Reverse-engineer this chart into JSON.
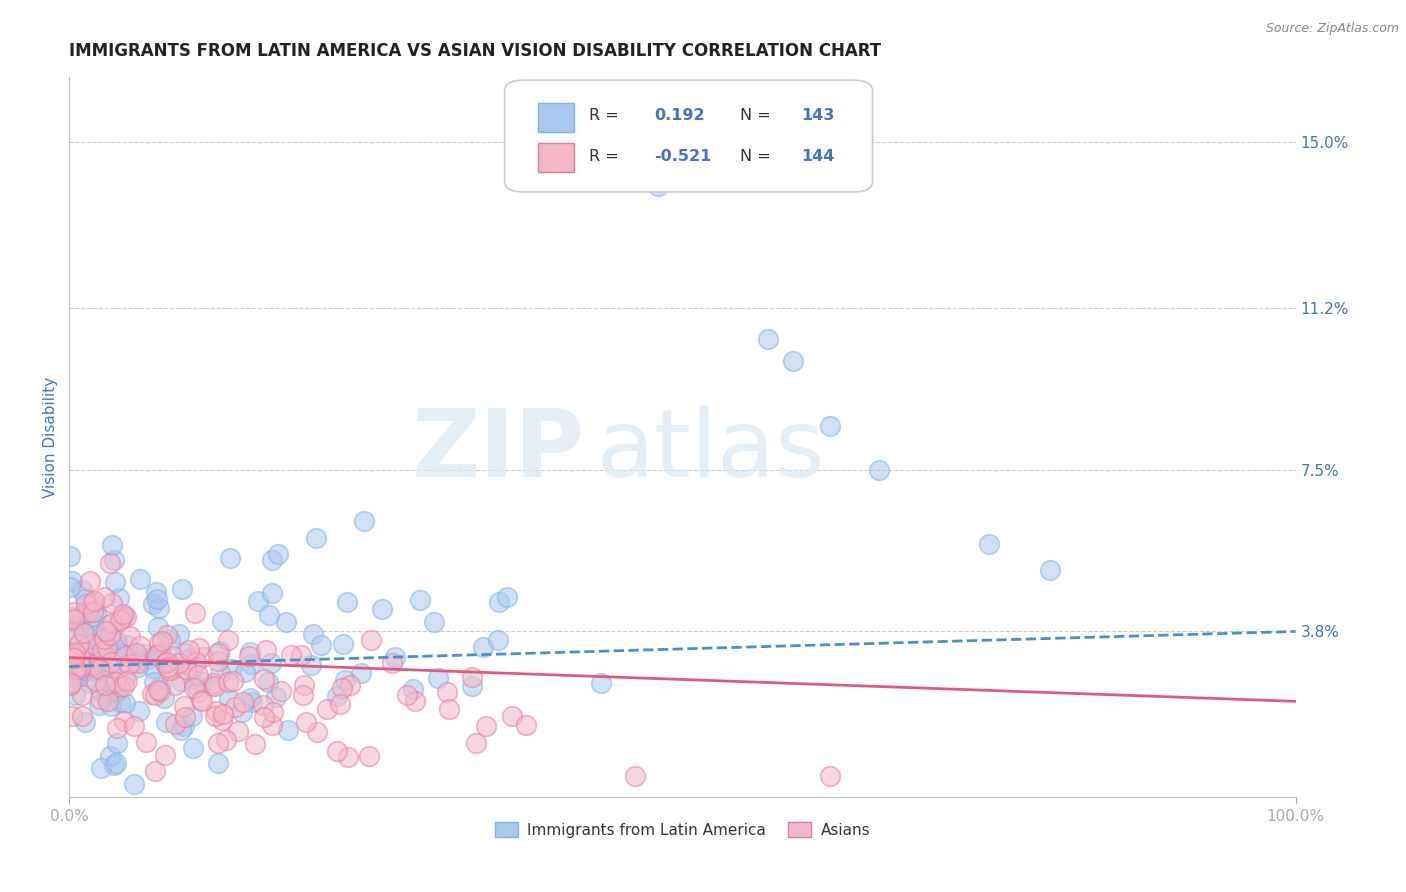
{
  "title": "IMMIGRANTS FROM LATIN AMERICA VS ASIAN VISION DISABILITY CORRELATION CHART",
  "source": "Source: ZipAtlas.com",
  "ylabel": "Vision Disability",
  "xlim": [
    0,
    100
  ],
  "ylim": [
    0,
    16.5
  ],
  "yticks": [
    3.8,
    7.5,
    11.2,
    15.0
  ],
  "xtick_labels": [
    "0.0%",
    "100.0%"
  ],
  "ytick_labels": [
    "3.8%",
    "7.5%",
    "11.2%",
    "15.0%"
  ],
  "grid_color": "#cccccc",
  "background_color": "#ffffff",
  "series1_color": "#aac8ee",
  "series1_edge": "#7ab3e8",
  "series2_color": "#f4b8c8",
  "series2_edge": "#e87aa0",
  "line1_color": "#4d8ec9",
  "line2_color": "#e05a80",
  "legend_r1": "0.192",
  "legend_n1": "143",
  "legend_r2": "-0.521",
  "legend_n2": "144",
  "legend_label1": "Immigrants from Latin America",
  "legend_label2": "Asians",
  "legend_text_color": "#333333",
  "legend_value_color": "#4472c4",
  "watermark": "ZIPatlas",
  "title_color": "#222222",
  "axis_label_color": "#4472c4",
  "tick_label_color": "#4472c4",
  "title_fontsize": 12,
  "seed": 42,
  "n1": 143,
  "n2": 144,
  "r1": 0.192,
  "r2": -0.521
}
